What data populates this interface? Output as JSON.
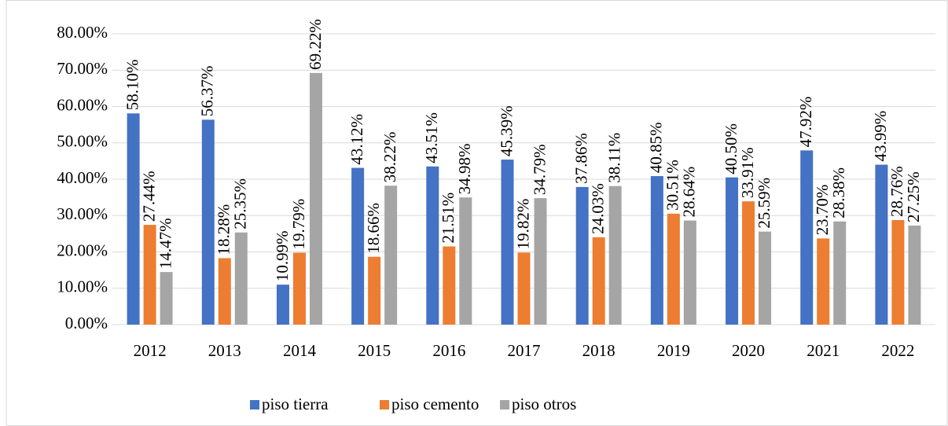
{
  "chart_data": {
    "type": "bar",
    "categories": [
      "2012",
      "2013",
      "2014",
      "2015",
      "2016",
      "2017",
      "2018",
      "2019",
      "2020",
      "2021",
      "2022"
    ],
    "series": [
      {
        "name": "piso tierra",
        "color": "#4472c4",
        "values": [
          58.1,
          56.37,
          10.99,
          43.12,
          43.51,
          45.39,
          37.86,
          40.85,
          40.5,
          47.92,
          43.99
        ],
        "value_labels": [
          "58.10%",
          "56.37%",
          "10.99%",
          "43.12%",
          "43.51%",
          "45.39%",
          "37.86%",
          "40.85%",
          "40.50%",
          "47.92%",
          "43.99%"
        ]
      },
      {
        "name": "piso cemento",
        "color": "#ed7d31",
        "values": [
          27.44,
          18.28,
          19.79,
          18.66,
          21.51,
          19.82,
          24.03,
          30.51,
          33.91,
          23.7,
          28.76
        ],
        "value_labels": [
          "27.44%",
          "18.28%",
          "19.79%",
          "18.66%",
          "21.51%",
          "19.82%",
          "24.03%",
          "30.51%",
          "33.91%",
          "23.70%",
          "28.76%"
        ]
      },
      {
        "name": "piso otros",
        "color": "#a5a5a5",
        "values": [
          14.47,
          25.35,
          69.22,
          38.22,
          34.98,
          34.79,
          38.11,
          28.64,
          25.59,
          28.38,
          27.25
        ],
        "value_labels": [
          "14.47%",
          "25.35%",
          "69.22%",
          "38.22%",
          "34.98%",
          "34.79%",
          "38.11%",
          "28.64%",
          "25.59%",
          "28.38%",
          "27.25%"
        ]
      }
    ],
    "ylim": [
      0,
      80
    ],
    "yticks": [
      {
        "value": 0,
        "label": "0.00%"
      },
      {
        "value": 10,
        "label": "10.00%"
      },
      {
        "value": 20,
        "label": "20.00%"
      },
      {
        "value": 30,
        "label": "30.00%"
      },
      {
        "value": 40,
        "label": "40.00%"
      },
      {
        "value": 50,
        "label": "50.00%"
      },
      {
        "value": 60,
        "label": "60.00%"
      },
      {
        "value": 70,
        "label": "70.00%"
      },
      {
        "value": 80,
        "label": "80.00%"
      }
    ],
    "grid": true,
    "legend": "bottom"
  }
}
